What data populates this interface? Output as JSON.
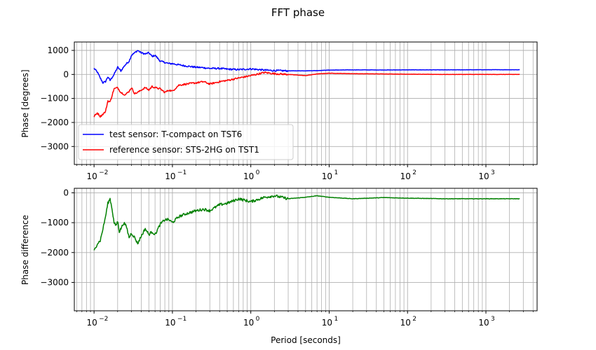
{
  "chart_data": [
    {
      "type": "line",
      "title": "FFT phase",
      "xlabel": "",
      "ylabel": "Phase [degrees]",
      "xscale": "log",
      "xlim": [
        0.0056,
        4500
      ],
      "ylim": [
        -3750,
        1350
      ],
      "grid": true,
      "legend": "lower-left",
      "yticks": [
        1000,
        0,
        -1000,
        -2000,
        -3000
      ],
      "ytick_labels": [
        "1000",
        "0",
        "−1000",
        "−2000",
        "−3000"
      ],
      "xticks": [
        0.01,
        0.1,
        1,
        10,
        100,
        1000
      ],
      "xtick_labels": [
        "10",
        "10",
        "10",
        "10",
        "10",
        "10"
      ],
      "xtick_exponents": [
        "−2",
        "−1",
        "0",
        "1",
        "2",
        "3"
      ],
      "series": [
        {
          "name": "test sensor: T-compact on TST6",
          "color": "#0000ff",
          "x": [
            0.01,
            0.011,
            0.012,
            0.013,
            0.014,
            0.015,
            0.016,
            0.018,
            0.02,
            0.022,
            0.025,
            0.028,
            0.03,
            0.033,
            0.036,
            0.04,
            0.045,
            0.05,
            0.055,
            0.06,
            0.07,
            0.08,
            0.09,
            0.1,
            0.12,
            0.15,
            0.2,
            0.25,
            0.3,
            0.4,
            0.5,
            0.7,
            1,
            1.5,
            2,
            3,
            5,
            7,
            10,
            20,
            50,
            100,
            300,
            1000,
            2700
          ],
          "y": [
            250,
            100,
            -150,
            -350,
            -300,
            -100,
            -250,
            0,
            300,
            150,
            400,
            550,
            800,
            900,
            1000,
            900,
            850,
            900,
            750,
            800,
            550,
            500,
            450,
            450,
            400,
            350,
            300,
            280,
            250,
            250,
            220,
            200,
            230,
            180,
            160,
            150,
            150,
            160,
            180,
            190,
            185,
            190,
            190,
            195,
            195
          ]
        },
        {
          "name": "reference sensor: STS-2HG on TST1",
          "color": "#ff0000",
          "x": [
            0.01,
            0.011,
            0.012,
            0.013,
            0.014,
            0.015,
            0.016,
            0.018,
            0.02,
            0.022,
            0.025,
            0.028,
            0.03,
            0.033,
            0.036,
            0.04,
            0.045,
            0.05,
            0.055,
            0.06,
            0.07,
            0.08,
            0.09,
            0.1,
            0.12,
            0.15,
            0.2,
            0.25,
            0.3,
            0.4,
            0.5,
            0.7,
            1,
            1.5,
            2,
            3,
            5,
            7,
            10,
            20,
            50,
            100,
            300,
            1000,
            2700
          ],
          "y": [
            -1750,
            -1600,
            -1750,
            -1650,
            -1550,
            -1100,
            -1150,
            -600,
            -550,
            -750,
            -850,
            -700,
            -550,
            -800,
            -750,
            -650,
            -550,
            -650,
            -500,
            -550,
            -600,
            -750,
            -650,
            -700,
            -450,
            -400,
            -350,
            -300,
            -400,
            -300,
            -250,
            -150,
            -50,
            80,
            30,
            0,
            -50,
            20,
            50,
            30,
            20,
            10,
            0,
            0,
            0
          ]
        }
      ]
    },
    {
      "type": "line",
      "title": "",
      "xlabel": "Period [seconds]",
      "ylabel": "Phase difference",
      "xscale": "log",
      "xlim": [
        0.0056,
        4500
      ],
      "ylim": [
        -3950,
        150
      ],
      "grid": true,
      "yticks": [
        0,
        -1000,
        -2000,
        -3000
      ],
      "ytick_labels": [
        "0",
        "−1000",
        "−2000",
        "−3000"
      ],
      "xticks": [
        0.01,
        0.1,
        1,
        10,
        100,
        1000
      ],
      "xtick_labels": [
        "10",
        "10",
        "10",
        "10",
        "10",
        "10"
      ],
      "xtick_exponents": [
        "−2",
        "−1",
        "0",
        "1",
        "2",
        "3"
      ],
      "series": [
        {
          "color": "#008000",
          "x": [
            0.01,
            0.011,
            0.012,
            0.013,
            0.014,
            0.015,
            0.016,
            0.017,
            0.018,
            0.019,
            0.02,
            0.021,
            0.022,
            0.024,
            0.026,
            0.028,
            0.03,
            0.033,
            0.036,
            0.04,
            0.045,
            0.05,
            0.055,
            0.06,
            0.07,
            0.08,
            0.09,
            0.1,
            0.12,
            0.15,
            0.2,
            0.25,
            0.3,
            0.4,
            0.5,
            0.7,
            1,
            1.5,
            2,
            3,
            5,
            7,
            10,
            20,
            50,
            100,
            300,
            1000,
            2700
          ],
          "y": [
            -1950,
            -1700,
            -1600,
            -1200,
            -800,
            -350,
            -200,
            -550,
            -1000,
            -1100,
            -950,
            -1300,
            -1200,
            -1000,
            -1150,
            -1500,
            -1350,
            -1500,
            -1700,
            -1450,
            -1200,
            -1400,
            -1300,
            -1400,
            -1050,
            -900,
            -900,
            -1000,
            -800,
            -700,
            -600,
            -550,
            -600,
            -400,
            -350,
            -200,
            -300,
            -150,
            -100,
            -200,
            -150,
            -100,
            -150,
            -200,
            -160,
            -180,
            -200,
            -200,
            -200
          ]
        }
      ]
    }
  ]
}
